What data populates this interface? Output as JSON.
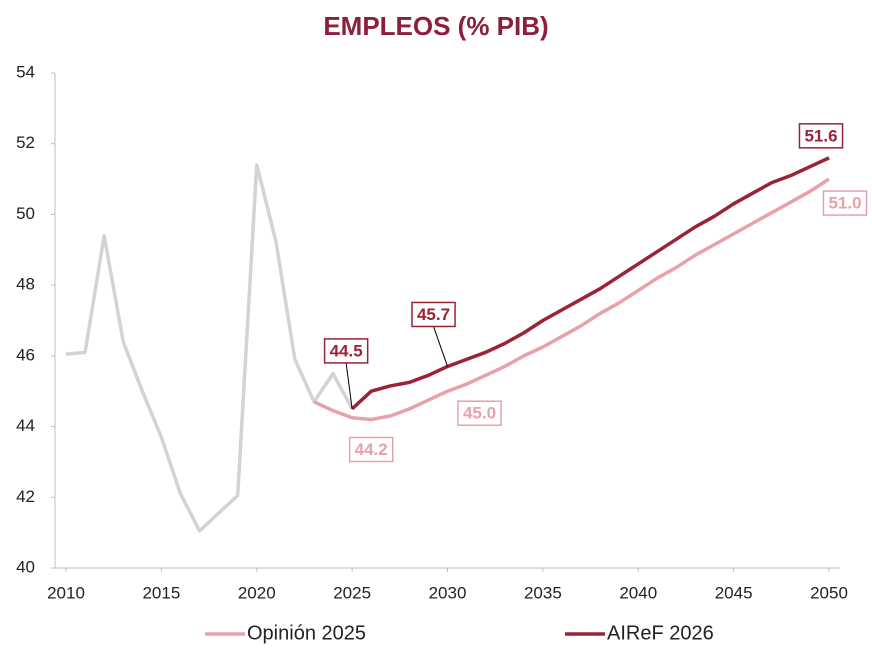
{
  "chart_data": {
    "type": "line",
    "title": "EMPLEOS (% PIB)",
    "xlim": [
      2010,
      2050
    ],
    "xticks": [
      2010,
      2015,
      2020,
      2025,
      2030,
      2035,
      2040,
      2045,
      2050
    ],
    "ylim": [
      40,
      54
    ],
    "yticks": [
      40,
      42,
      44,
      46,
      48,
      50,
      52,
      54
    ],
    "grid": false,
    "legend": "bottom",
    "series": [
      {
        "color": "#d3d3d3",
        "x": [
          2010,
          2011,
          2012,
          2013,
          2014,
          2015,
          2016,
          2017,
          2018,
          2019,
          2020,
          2021,
          2022,
          2023,
          2024,
          2025
        ],
        "values": [
          46.05,
          46.1,
          49.4,
          46.4,
          45.0,
          43.7,
          42.1,
          41.05,
          41.55,
          42.05,
          51.4,
          49.25,
          45.9,
          44.7,
          45.5,
          44.5
        ]
      },
      {
        "name": "Opinión 2025",
        "color": "#e8a1aa",
        "x": [
          2023,
          2024,
          2025,
          2026,
          2027,
          2028,
          2029,
          2030,
          2031,
          2032,
          2033,
          2034,
          2035,
          2036,
          2037,
          2038,
          2039,
          2040,
          2041,
          2042,
          2043,
          2044,
          2045,
          2046,
          2047,
          2048,
          2049,
          2050
        ],
        "values": [
          44.7,
          44.45,
          44.25,
          44.2,
          44.3,
          44.5,
          44.75,
          45.0,
          45.2,
          45.45,
          45.7,
          46.0,
          46.25,
          46.55,
          46.85,
          47.2,
          47.5,
          47.85,
          48.2,
          48.5,
          48.85,
          49.15,
          49.45,
          49.75,
          50.05,
          50.35,
          50.65,
          51.0
        ],
        "value_labels": [
          null,
          null,
          null,
          "44.2",
          null,
          null,
          null,
          "45.0",
          null,
          null,
          null,
          null,
          null,
          null,
          null,
          null,
          null,
          null,
          null,
          null,
          null,
          null,
          null,
          null,
          null,
          null,
          null,
          "51.0"
        ]
      },
      {
        "name": "AIReF 2026",
        "color": "#9b2335",
        "x": [
          2025,
          2026,
          2027,
          2028,
          2029,
          2030,
          2031,
          2032,
          2033,
          2034,
          2035,
          2036,
          2037,
          2038,
          2039,
          2040,
          2041,
          2042,
          2043,
          2044,
          2045,
          2046,
          2047,
          2048,
          2049,
          2050
        ],
        "values": [
          44.5,
          45.0,
          45.15,
          45.25,
          45.45,
          45.7,
          45.9,
          46.1,
          46.35,
          46.65,
          47.0,
          47.3,
          47.6,
          47.9,
          48.25,
          48.6,
          48.95,
          49.3,
          49.65,
          49.95,
          50.3,
          50.6,
          50.9,
          51.1,
          51.35,
          51.6
        ],
        "value_labels": [
          "44.5",
          null,
          null,
          null,
          null,
          "45.7",
          null,
          null,
          null,
          null,
          null,
          null,
          null,
          null,
          null,
          null,
          null,
          null,
          null,
          null,
          null,
          null,
          null,
          null,
          null,
          "51.6"
        ]
      }
    ]
  }
}
